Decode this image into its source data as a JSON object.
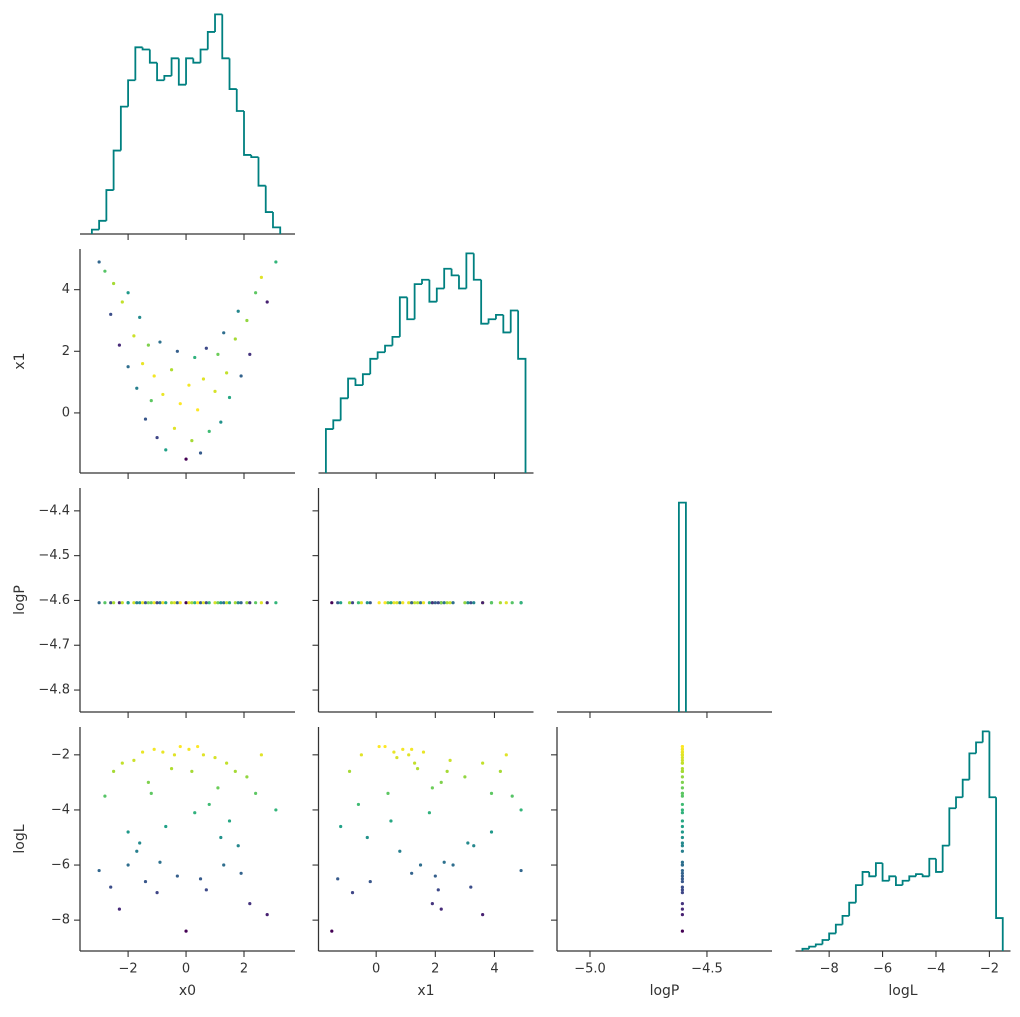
{
  "chart_data": {
    "type": "corner",
    "hist_color": "#008080",
    "colormap": "viridis",
    "color_by": "logL",
    "variables": [
      {
        "name": "x0",
        "xlim": [
          -3.66,
          3.76
        ],
        "xticks": [
          {
            "value": -2,
            "label": "−2"
          },
          0,
          2
        ],
        "values": [
          -3.0,
          -2.8,
          -2.6,
          -2.5,
          -2.3,
          -2.2,
          -2.0,
          -2.0,
          -1.8,
          -1.7,
          -1.6,
          -1.5,
          -1.4,
          -1.3,
          -1.2,
          -1.1,
          -1.0,
          -0.9,
          -0.8,
          -0.7,
          -0.5,
          -0.4,
          -0.3,
          -0.2,
          0.0,
          0.1,
          0.2,
          0.3,
          0.4,
          0.5,
          0.6,
          0.7,
          0.8,
          1.0,
          1.1,
          1.2,
          1.3,
          1.4,
          1.5,
          1.7,
          1.8,
          1.9,
          2.1,
          2.2,
          2.4,
          2.6,
          2.8,
          3.1
        ],
        "hist": {
          "ylim": [
            0,
            102
          ],
          "bins": [
            -3.25,
            -3.0,
            -2.75,
            -2.5,
            -2.25,
            -2.0,
            -1.75,
            -1.5,
            -1.25,
            -1.0,
            -0.75,
            -0.5,
            -0.25,
            0,
            0.25,
            0.5,
            0.75,
            1.0,
            1.25,
            1.5,
            1.75,
            2.0,
            2.25,
            2.5,
            2.75,
            3.0,
            3.25
          ],
          "counts": [
            2,
            6,
            20,
            38,
            58,
            70,
            85,
            84,
            78,
            70,
            72,
            80,
            68,
            80,
            78,
            84,
            92,
            100,
            80,
            66,
            56,
            36,
            35,
            22,
            10,
            3
          ]
        }
      },
      {
        "name": "x1",
        "xlim": [
          -1.95,
          5.32
        ],
        "xticks": [
          0,
          2,
          4
        ],
        "ylim": [
          -1.95,
          5.32
        ],
        "yticks": [
          0,
          2,
          4
        ],
        "values": [
          4.9,
          4.6,
          3.2,
          4.2,
          2.2,
          3.6,
          1.5,
          3.9,
          2.5,
          0.8,
          3.1,
          1.6,
          -0.2,
          2.2,
          0.4,
          1.2,
          -0.8,
          2.3,
          0.6,
          -1.2,
          1.4,
          -0.5,
          2.0,
          0.3,
          -1.5,
          0.9,
          -0.9,
          1.8,
          0.1,
          -1.3,
          1.1,
          2.1,
          -0.6,
          0.7,
          1.9,
          -0.3,
          2.6,
          1.3,
          0.5,
          2.4,
          3.3,
          1.2,
          3.0,
          1.9,
          3.9,
          4.4,
          3.6,
          4.9
        ],
        "hist": {
          "ylim": [
            0,
            102
          ],
          "bins": [
            -1.7,
            -1.45,
            -1.2,
            -0.95,
            -0.7,
            -0.45,
            -0.2,
            0.05,
            0.3,
            0.55,
            0.8,
            1.05,
            1.3,
            1.55,
            1.8,
            2.05,
            2.3,
            2.55,
            2.8,
            3.05,
            3.3,
            3.55,
            3.8,
            4.05,
            4.3,
            4.55,
            4.8,
            5.05
          ],
          "counts": [
            20,
            24,
            34,
            43,
            40,
            45,
            52,
            55,
            58,
            62,
            80,
            70,
            86,
            88,
            78,
            84,
            93,
            90,
            84,
            100,
            88,
            68,
            70,
            72,
            64,
            74,
            52
          ]
        }
      },
      {
        "name": "logP",
        "xlim": [
          -5.141,
          -4.222
        ],
        "xticks": [
          {
            "value": -5.0,
            "label": "−5.0"
          },
          {
            "value": -4.5,
            "label": "−4.5"
          }
        ],
        "ylim": [
          -4.849,
          -4.349
        ],
        "yticks": [
          {
            "value": -4.4,
            "label": "−4.4"
          },
          {
            "value": -4.5,
            "label": "−4.5"
          },
          {
            "value": -4.6,
            "label": "−4.6"
          },
          {
            "value": -4.7,
            "label": "−4.7"
          },
          {
            "value": -4.8,
            "label": "−4.8"
          }
        ],
        "values": [
          -4.605,
          -4.605,
          -4.605,
          -4.605,
          -4.605,
          -4.605,
          -4.605,
          -4.605,
          -4.605,
          -4.605,
          -4.605,
          -4.605,
          -4.605,
          -4.605,
          -4.605,
          -4.605,
          -4.605,
          -4.605,
          -4.605,
          -4.605,
          -4.605,
          -4.605,
          -4.605,
          -4.605,
          -4.605,
          -4.605,
          -4.605,
          -4.605,
          -4.605,
          -4.605,
          -4.605,
          -4.605,
          -4.605,
          -4.605,
          -4.605,
          -4.605,
          -4.605,
          -4.605,
          -4.605,
          -4.605,
          -4.605,
          -4.605,
          -4.605,
          -4.605,
          -4.605,
          -4.605,
          -4.605,
          -4.605
        ],
        "hist": {
          "ylim": [
            0,
            107
          ],
          "bins": [
            -4.62,
            -4.59
          ],
          "counts": [
            100
          ]
        }
      },
      {
        "name": "logL",
        "xlim": [
          -9.26,
          -1.21
        ],
        "xticks": [
          {
            "value": -8,
            "label": "−8"
          },
          {
            "value": -6,
            "label": "−6"
          },
          {
            "value": -4,
            "label": "−4"
          },
          {
            "value": -2,
            "label": "−2"
          }
        ],
        "ylim": [
          -9.12,
          -0.99
        ],
        "yticks": [
          {
            "value": -2,
            "label": "−2"
          },
          {
            "value": -4,
            "label": "−4"
          },
          {
            "value": -6,
            "label": "−6"
          },
          {
            "value": -8,
            "label": "−8"
          }
        ],
        "values": [
          -6.2,
          -3.5,
          -6.8,
          -2.6,
          -7.6,
          -2.3,
          -6.0,
          -4.8,
          -2.2,
          -5.5,
          -5.2,
          -1.9,
          -6.6,
          -3.0,
          -3.4,
          -1.8,
          -7.0,
          -5.9,
          -1.9,
          -4.6,
          -2.5,
          -2.0,
          -6.4,
          -1.7,
          -8.4,
          -1.8,
          -2.6,
          -4.1,
          -1.7,
          -6.5,
          -2.0,
          -6.9,
          -3.8,
          -2.1,
          -3.2,
          -5.0,
          -6.0,
          -2.3,
          -4.4,
          -2.6,
          -5.3,
          -6.3,
          -2.8,
          -7.4,
          -3.4,
          -2.0,
          -7.8,
          -4.0
        ],
        "hist": {
          "ylim": [
            0,
            102
          ],
          "bins": [
            -9.0,
            -8.75,
            -8.5,
            -8.25,
            -8.0,
            -7.75,
            -7.5,
            -7.25,
            -7.0,
            -6.75,
            -6.5,
            -6.25,
            -6.0,
            -5.75,
            -5.5,
            -5.25,
            -5.0,
            -4.75,
            -4.5,
            -4.25,
            -4.0,
            -3.75,
            -3.5,
            -3.25,
            -3.0,
            -2.75,
            -2.5,
            -2.25,
            -2.0,
            -1.75,
            -1.5
          ],
          "counts": [
            1,
            2,
            3,
            5,
            8,
            12,
            16,
            22,
            30,
            36,
            34,
            40,
            32,
            34,
            30,
            32,
            34,
            35,
            34,
            42,
            36,
            48,
            65,
            70,
            78,
            90,
            95,
            100,
            70,
            15
          ]
        }
      }
    ]
  }
}
